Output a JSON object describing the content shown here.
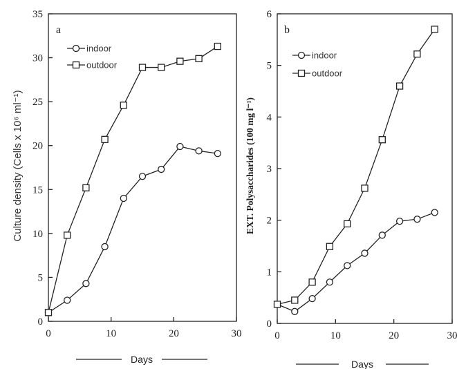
{
  "chart_data": [
    {
      "type": "line",
      "panel_label": "a",
      "xlabel": "Days",
      "ylabel": "Culture density (Cells x 10⁶ ml⁻¹)",
      "xlim": [
        0,
        30
      ],
      "ylim": [
        0,
        35
      ],
      "xticks": [
        0,
        10,
        20,
        30
      ],
      "yticks": [
        0,
        5,
        10,
        15,
        20,
        25,
        30,
        35
      ],
      "grid": false,
      "legend_position": "top-left",
      "series": [
        {
          "name": "indoor",
          "marker": "circle",
          "x": [
            0,
            3,
            6,
            9,
            12,
            15,
            18,
            21,
            24,
            27
          ],
          "y": [
            1.0,
            2.4,
            4.3,
            8.5,
            14.0,
            16.5,
            17.3,
            19.9,
            19.4,
            19.1
          ]
        },
        {
          "name": "outdoor",
          "marker": "square",
          "x": [
            0,
            3,
            6,
            9,
            12,
            15,
            18,
            21,
            24,
            27
          ],
          "y": [
            1.0,
            9.8,
            15.2,
            20.7,
            24.6,
            28.9,
            28.9,
            29.6,
            29.9,
            31.3
          ]
        }
      ]
    },
    {
      "type": "line",
      "panel_label": "b",
      "xlabel": "Days",
      "ylabel": "EXT. Polysaccharides (100 mg l⁻¹)",
      "xlim": [
        0,
        30
      ],
      "ylim": [
        0,
        6
      ],
      "xticks": [
        0,
        10,
        20,
        30
      ],
      "yticks": [
        0,
        1,
        2,
        3,
        4,
        5,
        6
      ],
      "grid": false,
      "legend_position": "top-left",
      "series": [
        {
          "name": "indoor",
          "marker": "circle",
          "x": [
            0,
            3,
            6,
            9,
            12,
            15,
            18,
            21,
            24,
            27
          ],
          "y": [
            0.37,
            0.23,
            0.48,
            0.8,
            1.12,
            1.36,
            1.71,
            1.98,
            2.02,
            2.15
          ]
        },
        {
          "name": "outdoor",
          "marker": "square",
          "x": [
            0,
            3,
            6,
            9,
            12,
            15,
            18,
            21,
            24,
            27
          ],
          "y": [
            0.37,
            0.45,
            0.8,
            1.49,
            1.93,
            2.62,
            3.56,
            4.6,
            5.22,
            5.7
          ]
        }
      ]
    }
  ]
}
